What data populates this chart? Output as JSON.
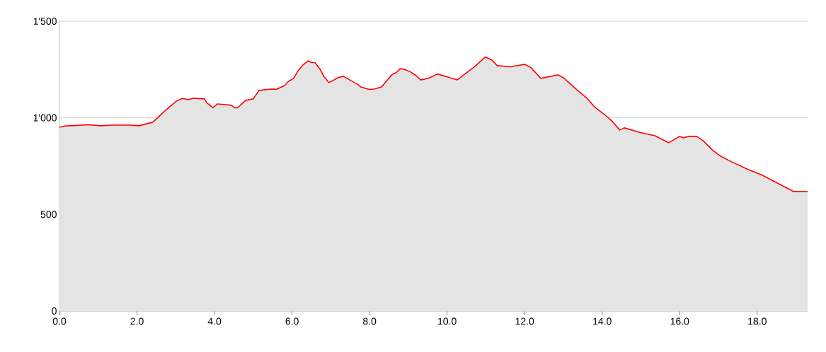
{
  "chart_data": {
    "type": "area",
    "xlim": [
      0,
      19.3
    ],
    "ylim": [
      0,
      1500
    ],
    "xticks": [
      {
        "value": 0,
        "label": "0.0"
      },
      {
        "value": 2,
        "label": "2.0"
      },
      {
        "value": 4,
        "label": "4.0"
      },
      {
        "value": 6,
        "label": "6.0"
      },
      {
        "value": 8,
        "label": "8.0"
      },
      {
        "value": 10,
        "label": "10.0"
      },
      {
        "value": 12,
        "label": "12.0"
      },
      {
        "value": 14,
        "label": "14.0"
      },
      {
        "value": 16,
        "label": "16.0"
      },
      {
        "value": 18,
        "label": "18.0"
      }
    ],
    "yticks": [
      0,
      500,
      {
        "value": 1000,
        "label": "1'000"
      },
      {
        "value": 1500,
        "label": "1'500"
      }
    ],
    "grid": "y",
    "series": [
      {
        "color": "#ff0000",
        "x": [
          0,
          0.12,
          0.75,
          1.06,
          1.37,
          1.81,
          2.06,
          2.26,
          2.41,
          2.7,
          3.02,
          3.17,
          3.33,
          3.45,
          3.74,
          3.8,
          3.96,
          4.08,
          4.43,
          4.52,
          4.6,
          4.8,
          5.0,
          5.15,
          5.47,
          5.6,
          5.81,
          5.91,
          6.04,
          6.16,
          6.28,
          6.41,
          6.5,
          6.59,
          6.73,
          6.82,
          6.95,
          7.11,
          7.17,
          7.32,
          7.49,
          7.71,
          7.77,
          7.99,
          8.12,
          8.31,
          8.4,
          8.59,
          8.68,
          8.8,
          8.94,
          9.06,
          9.19,
          9.32,
          9.42,
          9.55,
          9.75,
          10.0,
          10.26,
          10.72,
          10.98,
          11.16,
          11.29,
          11.63,
          12.0,
          12.16,
          12.42,
          12.85,
          13.0,
          13.33,
          13.6,
          13.8,
          14.06,
          14.25,
          14.45,
          14.57,
          14.98,
          15.36,
          15.72,
          16.0,
          16.1,
          16.23,
          16.44,
          16.6,
          16.86,
          17.06,
          17.3,
          17.77,
          18.1,
          18.8,
          18.94,
          19.3
        ],
        "values": [
          951,
          957,
          964,
          959,
          962,
          962,
          959,
          970,
          977,
          1032,
          1087,
          1100,
          1094,
          1101,
          1098,
          1078,
          1052,
          1072,
          1065,
          1052,
          1052,
          1090,
          1098,
          1142,
          1149,
          1148,
          1167,
          1189,
          1204,
          1245,
          1273,
          1295,
          1286,
          1286,
          1249,
          1215,
          1182,
          1199,
          1207,
          1215,
          1196,
          1171,
          1160,
          1147,
          1149,
          1160,
          1182,
          1226,
          1233,
          1255,
          1248,
          1237,
          1220,
          1196,
          1200,
          1207,
          1227,
          1212,
          1196,
          1266,
          1314,
          1299,
          1270,
          1264,
          1277,
          1260,
          1204,
          1222,
          1208,
          1148,
          1103,
          1057,
          1017,
          984,
          937,
          948,
          924,
          907,
          871,
          904,
          896,
          904,
          904,
          882,
          830,
          801,
          776,
          732,
          706,
          633,
          618,
          618
        ]
      }
    ]
  }
}
